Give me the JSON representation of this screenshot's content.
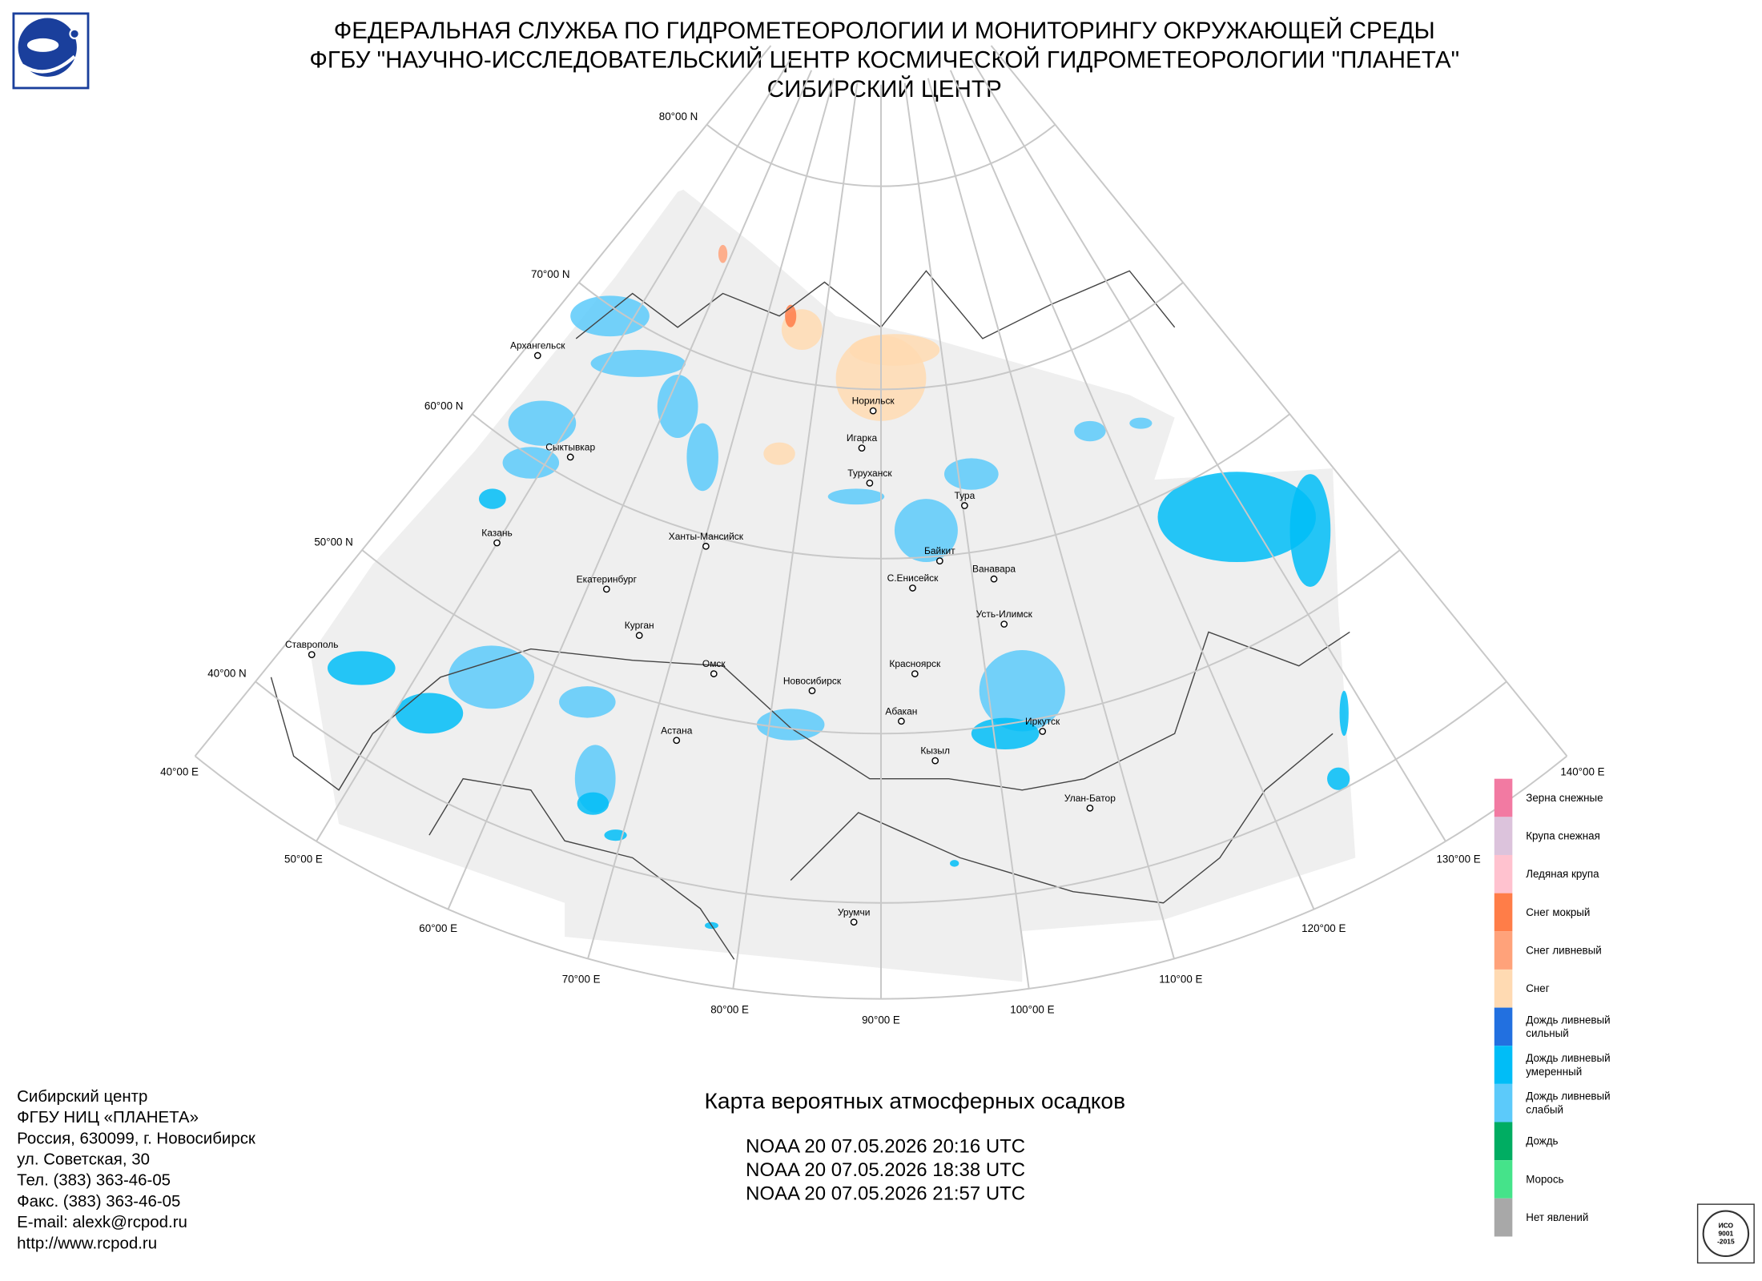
{
  "header": {
    "lines": [
      "ФЕДЕРАЛЬНАЯ СЛУЖБА ПО ГИДРОМЕТЕОРОЛОГИИ И МОНИТОРИНГУ ОКРУЖАЮЩЕЙ СРЕДЫ",
      "ФГБУ \"НАУЧНО-ИССЛЕДОВАТЕЛЬСКИЙ ЦЕНТР КОСМИЧЕСКОЙ ГИДРОМЕТЕОРОЛОГИИ \"ПЛАНЕТА\"",
      "СИБИРСКИЙ ЦЕНТР"
    ]
  },
  "map": {
    "parallels": [
      "80°00 N",
      "70°00 N",
      "60°00 N",
      "50°00 N",
      "40°00 N"
    ],
    "meridians": [
      "40°00 E",
      "50°00 E",
      "60°00 E",
      "70°00 E",
      "80°00 E",
      "90°00 E",
      "100°00 E",
      "110°00 E",
      "120°00 E",
      "130°00 E",
      "140°00 E"
    ],
    "cities": [
      "Архангельск",
      "Сыктывкар",
      "Казань",
      "Ханты-Мансийск",
      "Екатеринбург",
      "Курган",
      "Ставрополь",
      "Омск",
      "Астана",
      "Новосибирск",
      "Красноярск",
      "Абакан",
      "Кызыл",
      "Норильск",
      "Игарка",
      "Туруханск",
      "Тура",
      "Байкит",
      "С.Енисейск",
      "Ванавара",
      "Усть-Илимск",
      "Иркутск",
      "Улан-Батор",
      "Урумчи"
    ]
  },
  "legend": {
    "items": [
      {
        "label": [
          "Зерна снежные"
        ],
        "color": "#f27aa2"
      },
      {
        "label": [
          "Крупа снежная"
        ],
        "color": "#dcc3dc"
      },
      {
        "label": [
          "Ледяная крупа"
        ],
        "color": "#ffc2cf"
      },
      {
        "label": [
          "Снег мокрый"
        ],
        "color": "#ff7d48"
      },
      {
        "label": [
          "Снег ливневый"
        ],
        "color": "#ffa27a"
      },
      {
        "label": [
          "Снег"
        ],
        "color": "#ffdab2"
      },
      {
        "label": [
          "Дождь ливневый",
          "сильный"
        ],
        "color": "#2270e0"
      },
      {
        "label": [
          "Дождь ливневый",
          "умеренный"
        ],
        "color": "#00bdf7"
      },
      {
        "label": [
          "Дождь ливневый",
          "слабый"
        ],
        "color": "#5ccafa"
      },
      {
        "label": [
          "Дождь"
        ],
        "color": "#00ad62"
      },
      {
        "label": [
          "Морось"
        ],
        "color": "#45e38a"
      },
      {
        "label": [
          "Нет явлений"
        ],
        "color": "#a8a8a8"
      }
    ]
  },
  "footer": {
    "lines": [
      "Сибирский центр",
      "ФГБУ НИЦ «ПЛАНЕТА»",
      "Россия, 630099, г. Новосибирск",
      "ул. Советская, 30",
      "Тел. (383) 363-46-05",
      "Факс. (383) 363-46-05",
      "E-mail: alexk@rcpod.ru",
      "http://www.rcpod.ru"
    ]
  },
  "caption": {
    "title": "Карта вероятных атмосферных осадков",
    "passes": [
      "NOAA 20 07.05.2026  20:16 UTC",
      "NOAA 20 07.05.2026  18:38 UTC",
      "NOAA 20 07.05.2026  21:57 UTC"
    ]
  },
  "badge": {
    "lines": [
      "ИСО",
      "9001",
      "-2015"
    ]
  }
}
